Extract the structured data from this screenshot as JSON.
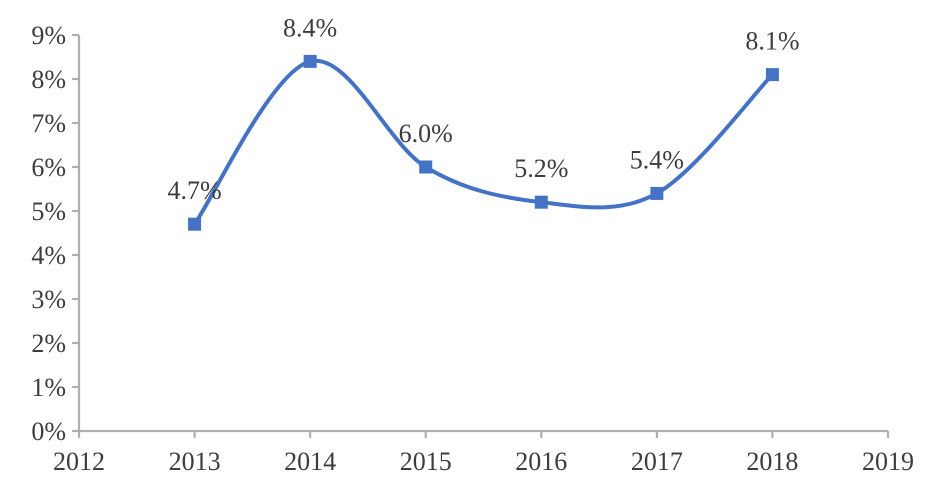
{
  "chart_data": {
    "type": "line",
    "title": "",
    "xlabel": "",
    "ylabel": "",
    "x": [
      2013,
      2014,
      2015,
      2016,
      2017,
      2018
    ],
    "values": [
      4.7,
      8.4,
      6.0,
      5.2,
      5.4,
      8.1
    ],
    "point_labels": [
      "4.7%",
      "8.4%",
      "6.0%",
      "5.2%",
      "5.4%",
      "8.1%"
    ],
    "x_ticks": [
      "2012",
      "2013",
      "2014",
      "2015",
      "2016",
      "2017",
      "2018",
      "2019"
    ],
    "x_tick_values": [
      2012,
      2013,
      2014,
      2015,
      2016,
      2017,
      2018,
      2019
    ],
    "x_range": [
      2012,
      2019
    ],
    "y_ticks": [
      "0%",
      "1%",
      "2%",
      "3%",
      "4%",
      "5%",
      "6%",
      "7%",
      "8%",
      "9%"
    ],
    "y_tick_values": [
      0,
      1,
      2,
      3,
      4,
      5,
      6,
      7,
      8,
      9
    ],
    "y_range": [
      0,
      9
    ],
    "grid": false,
    "legend": "none",
    "smooth": true,
    "marker": "square",
    "colors": {
      "line": "#4472C4",
      "marker": "#4472C4",
      "axis": "#AFAFAF",
      "text": "#3D3D3D",
      "background": "#FFFFFF"
    }
  }
}
